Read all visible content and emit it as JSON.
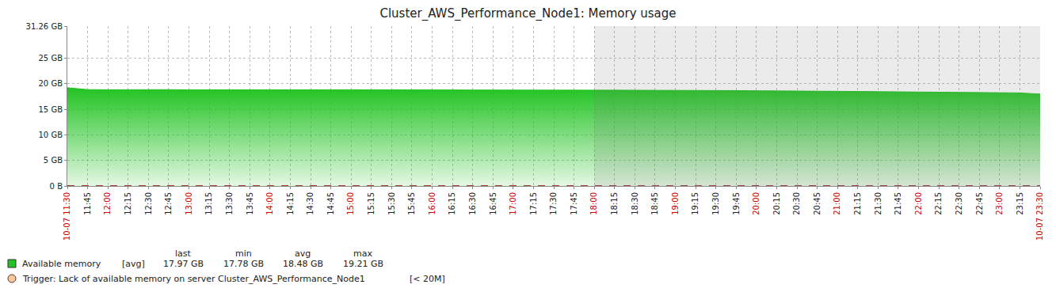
{
  "chart_data": {
    "type": "area",
    "title": "Cluster_AWS_Performance_Node1: Memory usage",
    "categories": [
      "10-07 11:30",
      "11:45",
      "12:00",
      "12:15",
      "12:30",
      "12:45",
      "13:00",
      "13:15",
      "13:30",
      "13:45",
      "14:00",
      "14:15",
      "14:30",
      "14:45",
      "15:00",
      "15:15",
      "15:30",
      "15:45",
      "16:00",
      "16:15",
      "16:30",
      "16:45",
      "17:00",
      "17:15",
      "17:30",
      "17:45",
      "18:00",
      "18:15",
      "18:30",
      "18:45",
      "19:00",
      "19:15",
      "19:30",
      "19:45",
      "20:00",
      "20:15",
      "20:30",
      "20:45",
      "21:00",
      "21:15",
      "21:30",
      "21:45",
      "22:00",
      "22:15",
      "22:30",
      "22:45",
      "23:00",
      "23:15",
      "10-07 23:30"
    ],
    "series": [
      {
        "name": "Available memory",
        "color": "#22c322",
        "values": [
          19.21,
          18.85,
          18.82,
          18.86,
          18.8,
          18.84,
          18.79,
          18.82,
          18.8,
          18.78,
          18.81,
          18.79,
          18.83,
          18.8,
          18.82,
          18.79,
          18.81,
          18.83,
          18.8,
          18.78,
          18.76,
          18.77,
          18.79,
          18.76,
          18.78,
          18.75,
          18.77,
          18.74,
          18.72,
          18.73,
          18.7,
          18.68,
          18.66,
          18.65,
          18.62,
          18.57,
          18.55,
          18.53,
          18.51,
          18.48,
          18.44,
          18.4,
          18.37,
          18.33,
          18.3,
          18.27,
          18.24,
          18.2,
          17.97
        ],
        "aggregate": "[avg]",
        "stats": {
          "labels": [
            "last",
            "min",
            "avg",
            "max"
          ],
          "values": [
            17.97,
            17.78,
            18.48,
            19.21
          ],
          "value_labels": [
            "17.97 GB",
            "17.78 GB",
            "18.48 GB",
            "19.21 GB"
          ]
        }
      },
      {
        "name": "Trigger: Lack of available memory on server Cluster_AWS_Performance_Node1",
        "type": "threshold",
        "color": "#b03a2e",
        "line_style": "dashed",
        "value": 0.02,
        "value_label": "[< 20M]"
      }
    ],
    "ylim": [
      0,
      31.26
    ],
    "yticks": [
      {
        "value": 0,
        "label": "0 B"
      },
      {
        "value": 5,
        "label": "5 GB"
      },
      {
        "value": 10,
        "label": "10 GB"
      },
      {
        "value": 15,
        "label": "15 GB"
      },
      {
        "value": 20,
        "label": "20 GB"
      },
      {
        "value": 25,
        "label": "25 GB"
      },
      {
        "value": 31.26,
        "label": "31.26 GB"
      }
    ],
    "grid": true,
    "shaded": [
      "18:00",
      "10-07 23:30"
    ]
  }
}
